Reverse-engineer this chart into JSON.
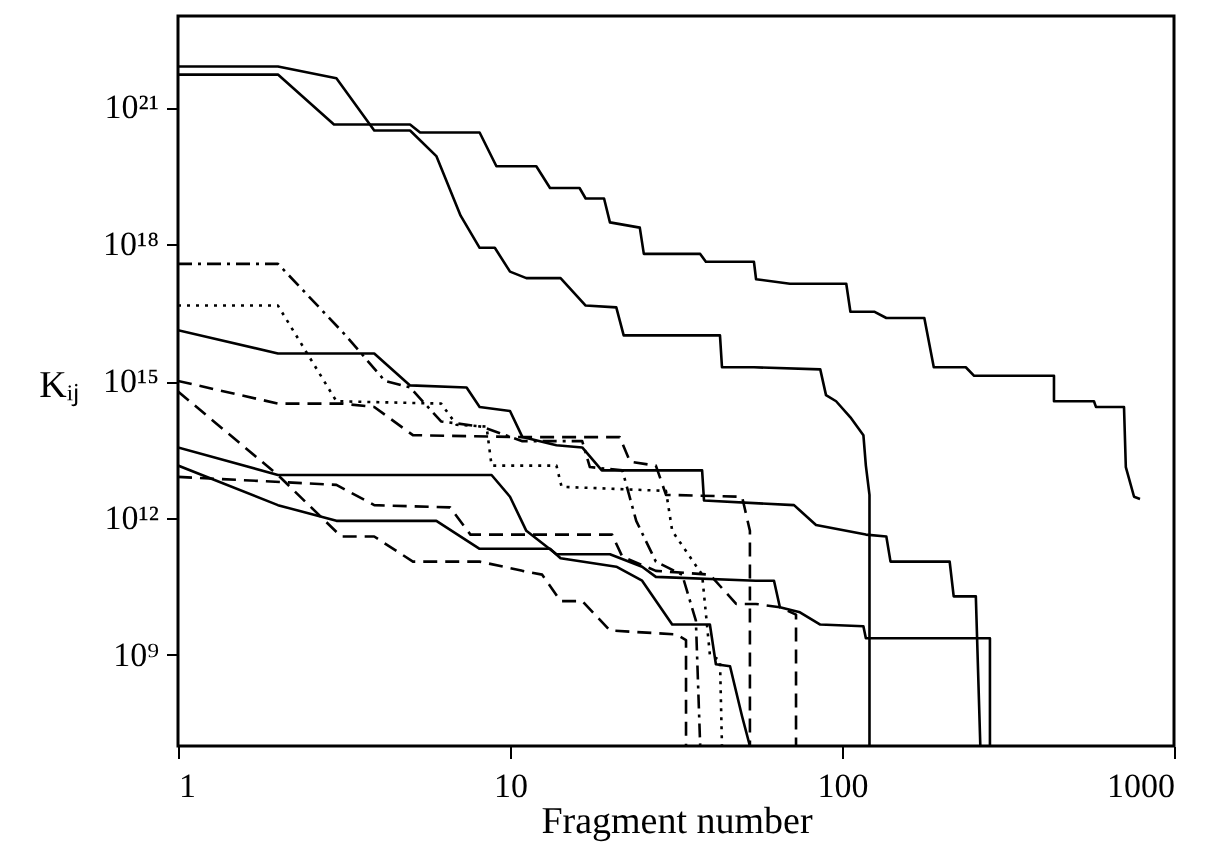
{
  "chart_data": {
    "type": "line",
    "xlabel": "Fragment number",
    "ylabel": "Kᵢⱼ",
    "log": "xy",
    "xlim": [
      1,
      1000
    ],
    "ylim": [
      10000000.0,
      1e+23
    ],
    "xticks": [
      1,
      10,
      100,
      1000
    ],
    "yticks": [
      {
        "value": 1000000000.0,
        "label": "10⁹"
      },
      {
        "value": 1000000000000.0,
        "label": "10¹²"
      },
      {
        "value": 1000000000000000.0,
        "label": "10¹⁵"
      },
      {
        "value": 1e+18,
        "label": "10¹⁸"
      },
      {
        "value": 1e+21,
        "label": "10²¹"
      }
    ],
    "series": [
      {
        "color": "#000000",
        "line_style": "solid",
        "x": [
          1,
          2.0,
          3.0,
          3.9,
          5.0,
          6.0,
          7.1,
          8.1,
          9.0,
          10,
          11.2,
          14.2,
          16.9,
          20.9,
          22.0,
          42.9,
          43.5,
          54.3,
          86,
          89.5,
          96,
          106,
          116,
          118,
          121,
          121
        ],
        "values": [
          7.8e+21,
          7.8e+21,
          4.3e+21,
          3.1e+20,
          3.1e+20,
          8.5e+19,
          4.2e+18,
          8.3e+17,
          8.3e+17,
          2.5e+17,
          1.8e+17,
          1.8e+17,
          4.5e+16,
          4.1e+16,
          1e+16,
          1e+16,
          2000000000000000.0,
          2000000000000000.0,
          1800000000000000.0,
          490000000000000.0,
          360000000000000.0,
          160000000000000.0,
          65000000000000.0,
          14000000000000.0,
          3200000000000.0,
          10000000.0
        ]
      },
      {
        "color": "#000000",
        "line_style": "solid",
        "x": [
          1,
          2.0,
          2.95,
          5.0,
          5.36,
          8.1,
          9.1,
          12,
          13.2,
          16.2,
          16.9,
          19.2,
          20,
          24.6,
          25.3,
          37.4,
          38.9,
          54.3,
          55.1,
          69.7,
          103,
          106,
          125,
          136,
          177,
          189,
          236,
          250,
          435,
          435,
          574,
          582,
          707,
          716,
          758,
          790
        ],
        "values": [
          5.2e+21,
          5.2e+21,
          4.2e+20,
          4.2e+20,
          2.8e+20,
          2.8e+20,
          5.1e+19,
          5.1e+19,
          1.7e+19,
          1.7e+19,
          1e+19,
          1e+19,
          3e+18,
          2.3e+18,
          6.1e+17,
          6.1e+17,
          4.1e+17,
          4.1e+17,
          1.7e+17,
          1.35e+17,
          1.35e+17,
          3.3e+16,
          3.3e+16,
          2.4e+16,
          2.4e+16,
          2000000000000000.0,
          2000000000000000.0,
          1300000000000000.0,
          1300000000000000.0,
          360000000000000.0,
          360000000000000.0,
          270000000000000.0,
          270000000000000.0,
          13000000000000.0,
          2900000000000.0,
          2600000000000.0
        ]
      },
      {
        "color": "#000000",
        "line_style": "dashdot",
        "x": [
          1,
          2.0,
          3.2,
          4.2,
          5.0,
          6.2,
          8.2,
          10.9,
          16.5,
          17.4,
          21.8,
          24,
          27.5,
          33,
          36.3,
          37.4
        ],
        "values": [
          3.7e+17,
          3.7e+17,
          1e+16,
          1000000000000000.0,
          720000000000000.0,
          130000000000000.0,
          100000000000000.0,
          48000000000000.0,
          48000000000000.0,
          13000000000000.0,
          11000000000000.0,
          860000000000.0,
          110000000000.0,
          57000000000.0,
          5600000000.0,
          10000000.0
        ]
      },
      {
        "color": "#000000",
        "line_style": "dotted",
        "x": [
          1,
          2.0,
          3.0,
          6.2,
          6.9,
          8.5,
          8.8,
          13.8,
          14.3,
          29.5,
          30.8,
          37.9,
          40,
          42.9,
          43.5
        ],
        "values": [
          4.5e+16,
          4.5e+16,
          360000000000000.0,
          320000000000000.0,
          110000000000000.0,
          100000000000000.0,
          14000000000000.0,
          14000000000000.0,
          4800000000000.0,
          3900000000000.0,
          520000000000.0,
          57000000000.0,
          1000000000.0,
          760000000.0,
          10000000.0
        ]
      },
      {
        "color": "#000000",
        "line_style": "solid",
        "x": [
          1,
          2.0,
          3.9,
          5.0,
          7.4,
          8.1,
          10,
          10.9,
          13.8,
          16.5,
          18.9,
          37.9,
          38.4,
          71.7,
          83.5,
          118,
          136,
          140,
          211,
          217,
          253,
          261
        ],
        "values": [
          1.3e+16,
          4000000000000000.0,
          4000000000000000.0,
          800000000000000.0,
          720000000000000.0,
          270000000000000.0,
          220000000000000.0,
          59000000000000.0,
          39000000000000.0,
          35000000000000.0,
          11000000000000.0,
          11000000000000.0,
          2400000000000.0,
          1900000000000.0,
          700000000000.0,
          430000000000.0,
          390000000000.0,
          110000000000.0,
          110000000000.0,
          19000000000.0,
          19000000000.0,
          10000000.0
        ]
      },
      {
        "color": "#000000",
        "line_style": "dashed",
        "x": [
          1,
          2.0,
          3.1,
          3.9,
          5.1,
          10.9,
          21.4,
          23,
          27.5,
          29.5,
          50,
          52.8,
          52.8
        ],
        "values": [
          1000000000000000.0,
          320000000000000.0,
          320000000000000.0,
          270000000000000.0,
          65000000000000.0,
          59000000000000.0,
          59000000000000.0,
          17000000000000.0,
          14000000000000.0,
          3200000000000.0,
          2900000000000.0,
          520000000000.0,
          10000000.0
        ]
      },
      {
        "color": "#000000",
        "line_style": "dashed",
        "x": [
          1,
          2.0,
          3.1,
          3.9,
          5.1,
          8.1,
          10.9,
          12.5,
          14.2,
          16.5,
          20,
          31.6,
          33.9,
          33.9
        ],
        "values": [
          590000000000000.0,
          8700000000000.0,
          390000000000.0,
          390000000000.0,
          110000000000.0,
          110000000000.0,
          69000000000.0,
          57000000000.0,
          15000000000.0,
          15000000000.0,
          3400000000.0,
          2800000000.0,
          2100000000.0,
          10000000.0
        ]
      },
      {
        "color": "#000000",
        "line_style": "dashed",
        "x": [
          1,
          3.0,
          3.9,
          6.6,
          7.6,
          20.3,
          21.8,
          27.5,
          40,
          48,
          55,
          65,
          72.7,
          72.7
        ],
        "values": [
          7900000000000.0,
          5300000000000.0,
          1900000000000.0,
          1700000000000.0,
          430000000000.0,
          430000000000.0,
          140000000000.0,
          69000000000.0,
          57000000000.0,
          13000000000.0,
          13000000000.0,
          11000000000.0,
          7600000000.0,
          10000000.0
        ]
      },
      {
        "color": "#000000",
        "line_style": "solid",
        "x": [
          1,
          2.0,
          8.8,
          10,
          11.2,
          13.8,
          20,
          25,
          27.5,
          55,
          62.4,
          65,
          74.7,
          86,
          116,
          118,
          279,
          279
        ],
        "values": [
          35000000000000.0,
          8700000000000.0,
          8700000000000.0,
          2900000000000.0,
          520000000000.0,
          160000000000.0,
          160000000000.0,
          85000000000.0,
          51000000000.0,
          42000000000.0,
          42000000000.0,
          11000000000.0,
          8500000000.0,
          4600000000.0,
          4200000000.0,
          2300000000.0,
          2300000000.0,
          10000000.0
        ]
      },
      {
        "color": "#000000",
        "line_style": "solid",
        "x": [
          1,
          2.0,
          3.0,
          6.0,
          8.1,
          13.2,
          14.2,
          20.9,
          25,
          30.8,
          40,
          41.7,
          46,
          50,
          52.8
        ],
        "values": [
          14000000000000.0,
          1900000000000.0,
          860000000000.0,
          860000000000.0,
          210000000000.0,
          210000000000.0,
          130000000000.0,
          85000000000.0,
          42000000000.0,
          4600000000.0,
          4600000000.0,
          620000000.0,
          560000000.0,
          45000000.0,
          10000000.0
        ]
      }
    ]
  }
}
